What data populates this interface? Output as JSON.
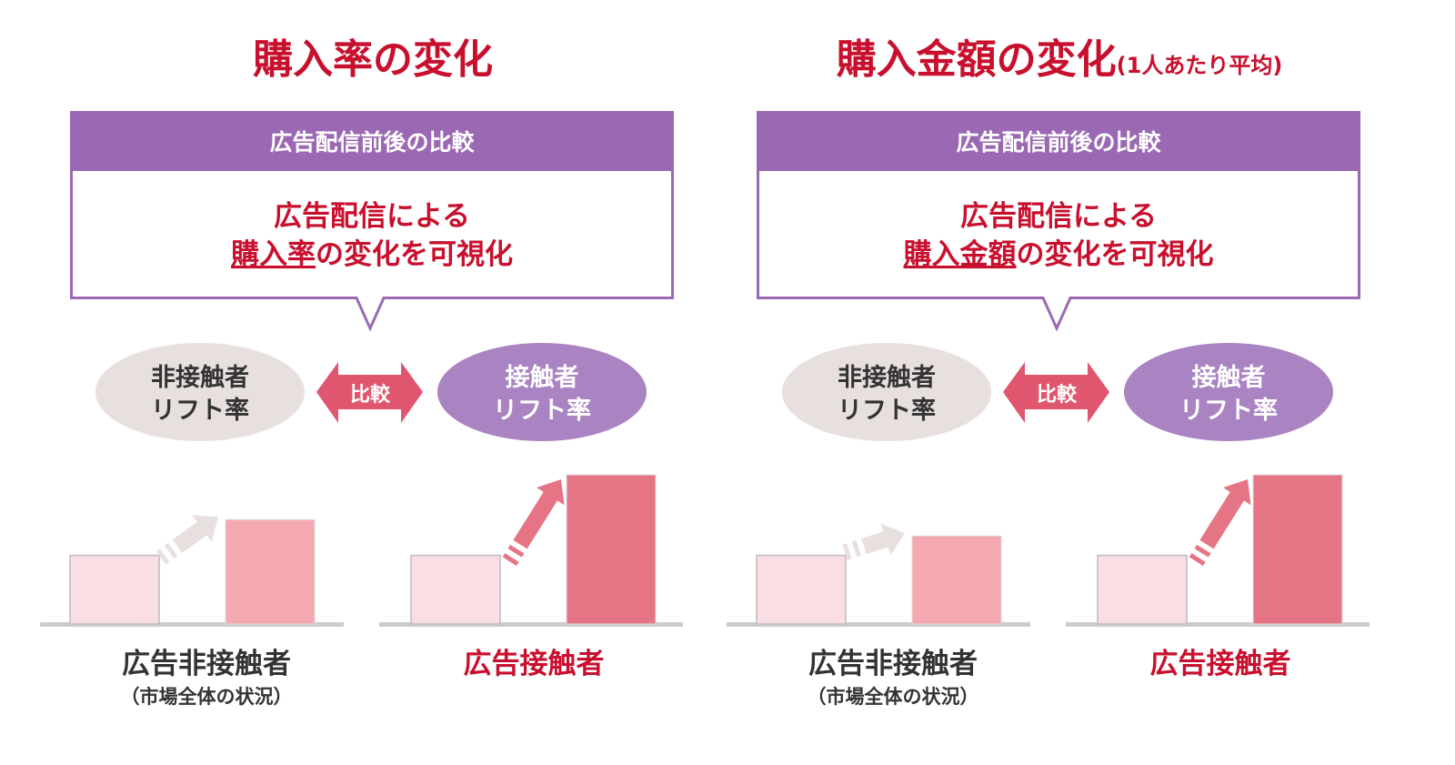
{
  "colors": {
    "title_red": "#c8102e",
    "purple_header": "#9b69b3",
    "ellipse_non_contact": "#e8e0de",
    "ellipse_contact": "#aa84c2",
    "compare_arrow": "#e0566e",
    "bar_before": "#fbdde4",
    "bar_non_contact_after": "#f4a9b0",
    "bar_contact_after": "#e57585",
    "baseline": "#cccccc"
  },
  "panels": [
    {
      "title": "購入率の変化",
      "title_suffix": "",
      "box_header": "広告配信前後の比較",
      "box_line1": "広告配信による",
      "box_line2_underlined": "購入率",
      "box_line2_rest": "の変化を可視化",
      "ellipse_left": {
        "line1": "非接触者",
        "line2": "リフト率"
      },
      "compare_label": "比較",
      "ellipse_right": {
        "line1": "接触者",
        "line2": "リフト率"
      },
      "group_non_contact": {
        "label": "広告非接触者",
        "sublabel": "（市場全体の状況）",
        "bar_levels": [
          0.46,
          0.7
        ]
      },
      "group_contact": {
        "label": "広告接触者",
        "bar_levels": [
          0.46,
          1.0
        ]
      }
    },
    {
      "title": "購入金額の変化",
      "title_suffix": "(1人あたり平均)",
      "box_header": "広告配信前後の比較",
      "box_line1": "広告配信による",
      "box_line2_underlined": "購入金額",
      "box_line2_rest": "の変化を可視化",
      "ellipse_left": {
        "line1": "非接触者",
        "line2": "リフト率"
      },
      "compare_label": "比較",
      "ellipse_right": {
        "line1": "接触者",
        "line2": "リフト率"
      },
      "group_non_contact": {
        "label": "広告非接触者",
        "sublabel": "（市場全体の状況）",
        "bar_levels": [
          0.46,
          0.59
        ]
      },
      "group_contact": {
        "label": "広告接触者",
        "bar_levels": [
          0.46,
          1.0
        ]
      }
    }
  ]
}
